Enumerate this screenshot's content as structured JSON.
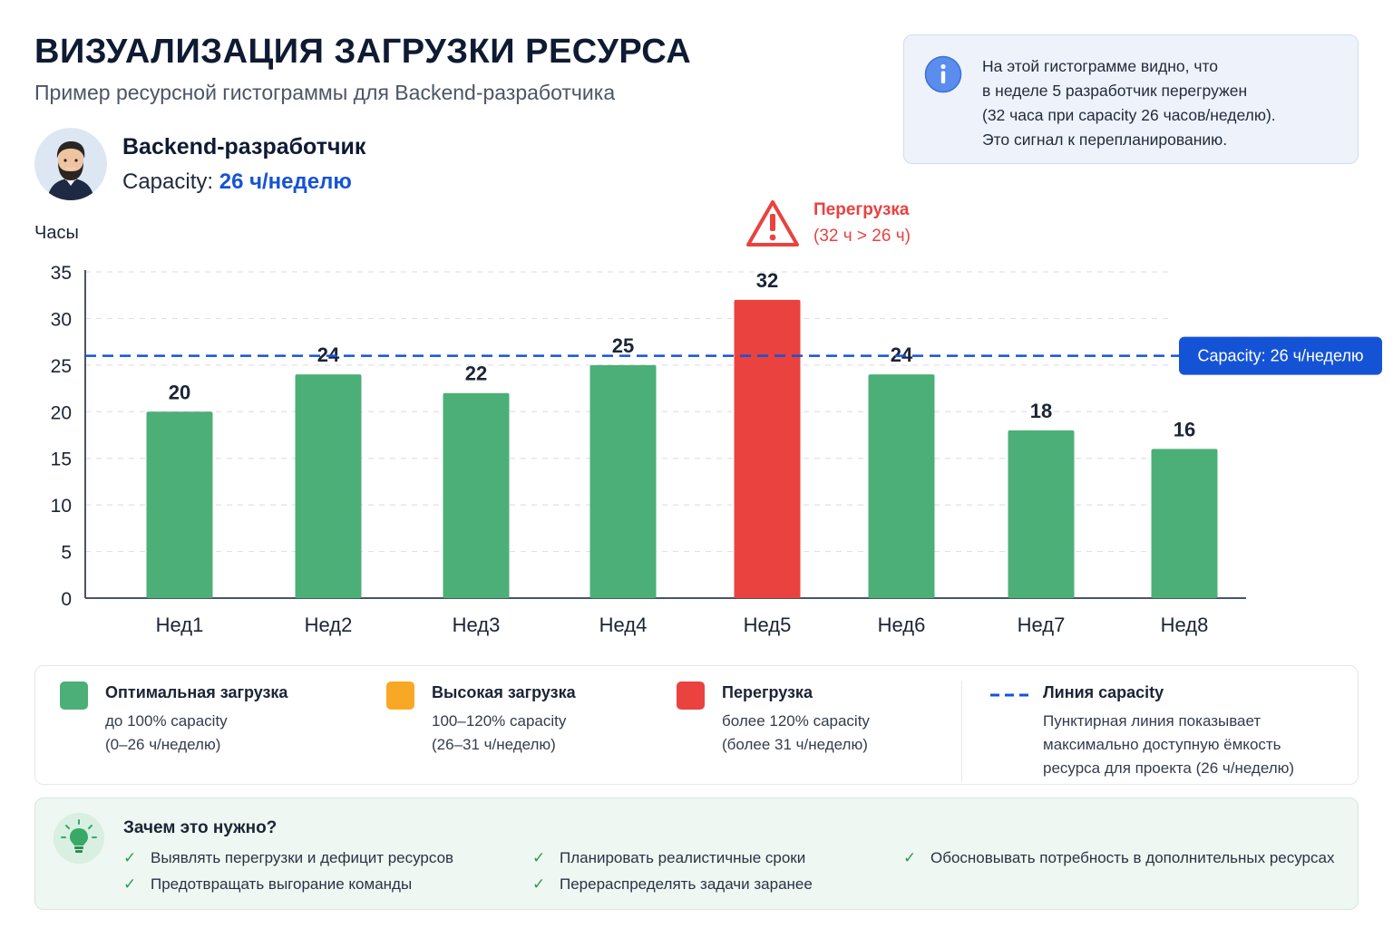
{
  "header": {
    "title": "ВИЗУАЛИЗАЦИЯ ЗАГРУЗКИ РЕСУРСА",
    "subtitle": "Пример ресурсной гистограммы для Backend-разработчика"
  },
  "info": {
    "lines": [
      "На этой гистограмме видно, что",
      "в неделе 5 разработчик перегружен",
      "(32 часа при capacity 26 часов/неделю).",
      "Это сигнал к перепланированию."
    ]
  },
  "resource": {
    "role": "Backend-разработчик",
    "capacity_label": "Capacity:",
    "capacity_value": "26 ч/неделю"
  },
  "colors": {
    "optimal": "#4caf77",
    "high": "#f9a825",
    "overload": "#e9423f",
    "capacity_line": "#1553d6"
  },
  "chart_data": {
    "type": "bar",
    "ylabel": "Часы",
    "ylim": [
      0,
      35
    ],
    "yticks": [
      0,
      5,
      10,
      15,
      20,
      25,
      30,
      35
    ],
    "categories": [
      "Нед1",
      "Нед2",
      "Нед3",
      "Нед4",
      "Нед5",
      "Нед6",
      "Нед7",
      "Нед8"
    ],
    "values": [
      20,
      24,
      22,
      25,
      32,
      24,
      18,
      16
    ],
    "capacity": 26,
    "capacity_label": "Capacity: 26 ч/неделю",
    "overload_annotation": [
      "Перегрузка",
      "(32 ч > 26 ч)"
    ],
    "grid": true
  },
  "legend": {
    "items": [
      {
        "title": "Оптимальная загрузка",
        "desc": [
          "до 100% capacity",
          "(0–26 ч/неделю)"
        ]
      },
      {
        "title": "Высокая загрузка",
        "desc": [
          "100–120% capacity",
          "(26–31 ч/неделю)"
        ]
      },
      {
        "title": "Перегрузка",
        "desc": [
          "более 120% capacity",
          "(более 31 ч/неделю)"
        ]
      },
      {
        "title": "Линия capacity",
        "desc": [
          "Пунктирная линия показывает",
          "максимально доступную ёмкость",
          "ресурса для проекта (26 ч/неделю)"
        ]
      }
    ]
  },
  "why": {
    "title": "Зачем это нужно?",
    "items": [
      "Выявлять перегрузки и дефицит ресурсов",
      "Предотвращать выгорание команды",
      "Планировать реалистичные сроки",
      "Перераспределять задачи заранее",
      "Обосновывать потребность в дополнительных ресурсах"
    ]
  }
}
